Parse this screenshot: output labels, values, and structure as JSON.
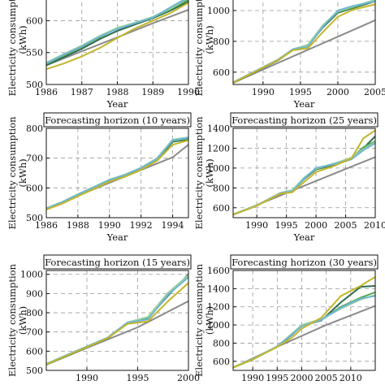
{
  "chart_data": [
    {
      "type": "line",
      "title": "",
      "xlabel": "Year",
      "ylabel": "Electricity consumption\n(kWh)",
      "xlim": [
        1986,
        1990
      ],
      "ylim": [
        500,
        640
      ],
      "xticks": [
        1986,
        1987,
        1988,
        1989,
        1990
      ],
      "yticks": [
        500,
        550,
        600
      ],
      "series": [
        {
          "color": "#8a8a8a",
          "x": [
            1986,
            1987,
            1988,
            1989,
            1990
          ],
          "y": [
            530,
            552,
            574,
            596,
            617
          ]
        },
        {
          "color": "#2e6b4e",
          "x": [
            1986,
            1986.5,
            1987,
            1987.5,
            1988,
            1988.5,
            1989,
            1989.5,
            1990
          ],
          "y": [
            530,
            543,
            556,
            571,
            584,
            594,
            604,
            616,
            630
          ]
        },
        {
          "color": "#5aa858",
          "x": [
            1986,
            1986.5,
            1987,
            1987.5,
            1988,
            1988.5,
            1989,
            1989.5,
            1990
          ],
          "y": [
            532,
            546,
            559,
            574,
            588,
            596,
            605,
            618,
            633
          ]
        },
        {
          "color": "#9fd19f",
          "x": [
            1986,
            1986.5,
            1987,
            1987.5,
            1988,
            1988.5,
            1989,
            1989.5,
            1990
          ],
          "y": [
            534,
            548,
            561,
            576,
            589,
            597,
            606,
            619,
            636
          ]
        },
        {
          "color": "#6fb6d4",
          "x": [
            1986,
            1986.5,
            1987,
            1987.5,
            1988,
            1988.5,
            1989,
            1989.5,
            1990
          ],
          "y": [
            533,
            547,
            560,
            575,
            587,
            596,
            605,
            621,
            637
          ]
        },
        {
          "color": "#c3b62a",
          "x": [
            1986,
            1986.5,
            1987,
            1987.5,
            1988,
            1988.5,
            1989,
            1989.5,
            1990
          ],
          "y": [
            524,
            533,
            544,
            557,
            573,
            588,
            600,
            612,
            628
          ]
        }
      ]
    },
    {
      "type": "line",
      "title": "",
      "xlabel": "Year",
      "ylabel": "Electricity consumption\n(kWh)",
      "xlim": [
        1986,
        2005
      ],
      "ylim": [
        520,
        1100
      ],
      "xticks": [
        1990,
        1995,
        2000,
        2005
      ],
      "yticks": [
        600,
        800,
        1000
      ],
      "series": [
        {
          "color": "#8a8a8a",
          "x": [
            1986,
            1990,
            1995,
            2000,
            2005
          ],
          "y": [
            530,
            617,
            724,
            830,
            937
          ]
        },
        {
          "color": "#2e6b4e",
          "x": [
            1986,
            1989,
            1992,
            1994,
            1996,
            1998,
            2000,
            2002,
            2005
          ],
          "y": [
            530,
            603,
            676,
            745,
            770,
            890,
            985,
            1015,
            1060
          ]
        },
        {
          "color": "#5aa858",
          "x": [
            1986,
            1989,
            1992,
            1994,
            1996,
            1998,
            2000,
            2002,
            2005
          ],
          "y": [
            532,
            606,
            680,
            748,
            775,
            900,
            990,
            1020,
            1065
          ]
        },
        {
          "color": "#9fd19f",
          "x": [
            1986,
            1989,
            1992,
            1994,
            1996,
            1998,
            2000,
            2002,
            2005
          ],
          "y": [
            534,
            608,
            682,
            750,
            778,
            905,
            995,
            1025,
            1070
          ]
        },
        {
          "color": "#6fb6d4",
          "x": [
            1986,
            1989,
            1992,
            1994,
            1996,
            1998,
            2000,
            2002,
            2005
          ],
          "y": [
            533,
            607,
            681,
            749,
            765,
            895,
            1000,
            1030,
            1060
          ]
        },
        {
          "color": "#c3b62a",
          "x": [
            1986,
            1989,
            1992,
            1994,
            1996,
            1998,
            2000,
            2002,
            2005
          ],
          "y": [
            531,
            604,
            678,
            742,
            755,
            860,
            960,
            1005,
            1040
          ]
        }
      ]
    },
    {
      "type": "line",
      "title": "Forecasting horizon (10 years)",
      "xlabel": "Year",
      "ylabel": "Electricity consumption\n(kWh)",
      "xlim": [
        1986,
        1995
      ],
      "ylim": [
        500,
        800
      ],
      "xticks": [
        1986,
        1988,
        1990,
        1992,
        1994
      ],
      "yticks": [
        500,
        600,
        700,
        800
      ],
      "series": [
        {
          "color": "#8a8a8a",
          "x": [
            1986,
            1988,
            1990,
            1992,
            1994,
            1995
          ],
          "y": [
            530,
            574,
            617,
            660,
            703,
            745
          ]
        },
        {
          "color": "#2e6b4e",
          "x": [
            1986,
            1987,
            1988,
            1989,
            1990,
            1991,
            1992,
            1993,
            1994,
            1995
          ],
          "y": [
            528,
            548,
            574,
            598,
            622,
            640,
            662,
            692,
            755,
            763
          ]
        },
        {
          "color": "#5aa858",
          "x": [
            1986,
            1987,
            1988,
            1989,
            1990,
            1991,
            1992,
            1993,
            1994,
            1995
          ],
          "y": [
            530,
            551,
            577,
            601,
            626,
            643,
            666,
            696,
            758,
            766
          ]
        },
        {
          "color": "#9fd19f",
          "x": [
            1986,
            1987,
            1988,
            1989,
            1990,
            1991,
            1992,
            1993,
            1994,
            1995
          ],
          "y": [
            532,
            553,
            579,
            603,
            628,
            645,
            668,
            699,
            762,
            770
          ]
        },
        {
          "color": "#6fb6d4",
          "x": [
            1986,
            1987,
            1988,
            1989,
            1990,
            1991,
            1992,
            1993,
            1994,
            1995
          ],
          "y": [
            531,
            552,
            578,
            602,
            627,
            644,
            667,
            697,
            760,
            768
          ]
        },
        {
          "color": "#c3b62a",
          "x": [
            1986,
            1987,
            1988,
            1989,
            1990,
            1991,
            1992,
            1993,
            1994,
            1995
          ],
          "y": [
            527,
            547,
            572,
            596,
            621,
            638,
            661,
            690,
            745,
            760
          ]
        }
      ]
    },
    {
      "type": "line",
      "title": "Forecasting horizon (25 years)",
      "xlabel": "Year",
      "ylabel": "Electricity consumption\n(kWh)",
      "xlim": [
        1986,
        2010
      ],
      "ylim": [
        500,
        1400
      ],
      "xticks": [
        1990,
        1995,
        2000,
        2005,
        2010
      ],
      "yticks": [
        600,
        800,
        1000,
        1200,
        1400
      ],
      "series": [
        {
          "color": "#8a8a8a",
          "x": [
            1986,
            1990,
            1995,
            2000,
            2005,
            2010
          ],
          "y": [
            530,
            627,
            748,
            870,
            990,
            1110
          ]
        },
        {
          "color": "#2e6b4e",
          "x": [
            1986,
            1990,
            1994,
            1996,
            1998,
            2000,
            2003,
            2006,
            2008,
            2010
          ],
          "y": [
            530,
            620,
            745,
            770,
            890,
            985,
            1030,
            1090,
            1200,
            1320
          ]
        },
        {
          "color": "#5aa858",
          "x": [
            1986,
            1990,
            1994,
            1996,
            1998,
            2000,
            2003,
            2006,
            2008,
            2010
          ],
          "y": [
            532,
            623,
            748,
            775,
            900,
            990,
            1040,
            1100,
            1210,
            1270
          ]
        },
        {
          "color": "#9fd19f",
          "x": [
            1986,
            1990,
            1994,
            1996,
            1998,
            2000,
            2003,
            2006,
            2008,
            2010
          ],
          "y": [
            534,
            625,
            750,
            778,
            905,
            995,
            1045,
            1105,
            1190,
            1260
          ]
        },
        {
          "color": "#6fb6d4",
          "x": [
            1986,
            1990,
            1994,
            1996,
            1998,
            2000,
            2003,
            2006,
            2008,
            2010
          ],
          "y": [
            533,
            624,
            749,
            765,
            895,
            1000,
            1040,
            1090,
            1180,
            1250
          ]
        },
        {
          "color": "#c3b62a",
          "x": [
            1986,
            1990,
            1994,
            1996,
            1998,
            2000,
            2003,
            2006,
            2008,
            2010
          ],
          "y": [
            531,
            621,
            742,
            755,
            860,
            960,
            1020,
            1100,
            1300,
            1380
          ]
        }
      ]
    },
    {
      "type": "line",
      "title": "Forecasting horizon (15 years)",
      "xlabel": "",
      "ylabel": "Electricity consumption\n(kWh)",
      "xlim": [
        1986,
        2000
      ],
      "ylim": [
        500,
        1020
      ],
      "xticks": [
        1990,
        1995,
        2000
      ],
      "yticks": [
        500,
        600,
        700,
        800,
        900,
        1000
      ],
      "series": [
        {
          "color": "#8a8a8a",
          "x": [
            1986,
            1990,
            1995,
            2000
          ],
          "y": [
            530,
            617,
            724,
            860
          ]
        },
        {
          "color": "#2e6b4e",
          "x": [
            1986,
            1988,
            1990,
            1992,
            1994,
            1996,
            1998,
            2000
          ],
          "y": [
            530,
            575,
            620,
            665,
            745,
            770,
            890,
            1000
          ]
        },
        {
          "color": "#5aa858",
          "x": [
            1986,
            1988,
            1990,
            1992,
            1994,
            1996,
            1998,
            2000
          ],
          "y": [
            532,
            578,
            623,
            668,
            748,
            775,
            900,
            990
          ]
        },
        {
          "color": "#9fd19f",
          "x": [
            1986,
            1988,
            1990,
            1992,
            1994,
            1996,
            1998,
            2000
          ],
          "y": [
            534,
            580,
            625,
            670,
            750,
            778,
            905,
            995
          ]
        },
        {
          "color": "#6fb6d4",
          "x": [
            1986,
            1988,
            1990,
            1992,
            1994,
            1996,
            1998,
            2000
          ],
          "y": [
            533,
            579,
            624,
            669,
            749,
            765,
            895,
            985
          ]
        },
        {
          "color": "#c3b62a",
          "x": [
            1986,
            1988,
            1990,
            1992,
            1994,
            1996,
            1998,
            2000
          ],
          "y": [
            531,
            576,
            621,
            666,
            742,
            755,
            860,
            955
          ]
        }
      ]
    },
    {
      "type": "line",
      "title": "Forecasting horizon (30 years)",
      "xlabel": "",
      "ylabel": "Electricity consumption\n(kWh)",
      "xlim": [
        1986,
        2015
      ],
      "ylim": [
        500,
        1600
      ],
      "xticks": [
        1990,
        1995,
        2000,
        2005,
        2010
      ],
      "yticks": [
        600,
        800,
        1000,
        1200,
        1400,
        1600
      ],
      "series": [
        {
          "color": "#8a8a8a",
          "x": [
            1986,
            1995,
            2005,
            2015
          ],
          "y": [
            530,
            760,
            1000,
            1210
          ]
        },
        {
          "color": "#2e6b4e",
          "x": [
            1986,
            1990,
            1995,
            1998,
            2000,
            2004,
            2008,
            2012,
            2015
          ],
          "y": [
            530,
            620,
            760,
            890,
            990,
            1050,
            1250,
            1420,
            1430
          ]
        },
        {
          "color": "#5aa858",
          "x": [
            1986,
            1990,
            1995,
            1998,
            2000,
            2004,
            2008,
            2012,
            2015
          ],
          "y": [
            532,
            623,
            763,
            900,
            995,
            1060,
            1200,
            1300,
            1360
          ]
        },
        {
          "color": "#9fd19f",
          "x": [
            1986,
            1990,
            1995,
            1998,
            2000,
            2004,
            2008,
            2012,
            2015
          ],
          "y": [
            534,
            625,
            765,
            905,
            1000,
            1065,
            1180,
            1280,
            1330
          ]
        },
        {
          "color": "#6fb6d4",
          "x": [
            1986,
            1990,
            1995,
            1998,
            2000,
            2004,
            2008,
            2012,
            2015
          ],
          "y": [
            533,
            624,
            764,
            895,
            985,
            1055,
            1190,
            1290,
            1320
          ]
        },
        {
          "color": "#c3b62a",
          "x": [
            1986,
            1990,
            1995,
            1998,
            2000,
            2004,
            2008,
            2012,
            2015
          ],
          "y": [
            531,
            621,
            758,
            860,
            960,
            1080,
            1320,
            1430,
            1530
          ]
        }
      ]
    }
  ]
}
